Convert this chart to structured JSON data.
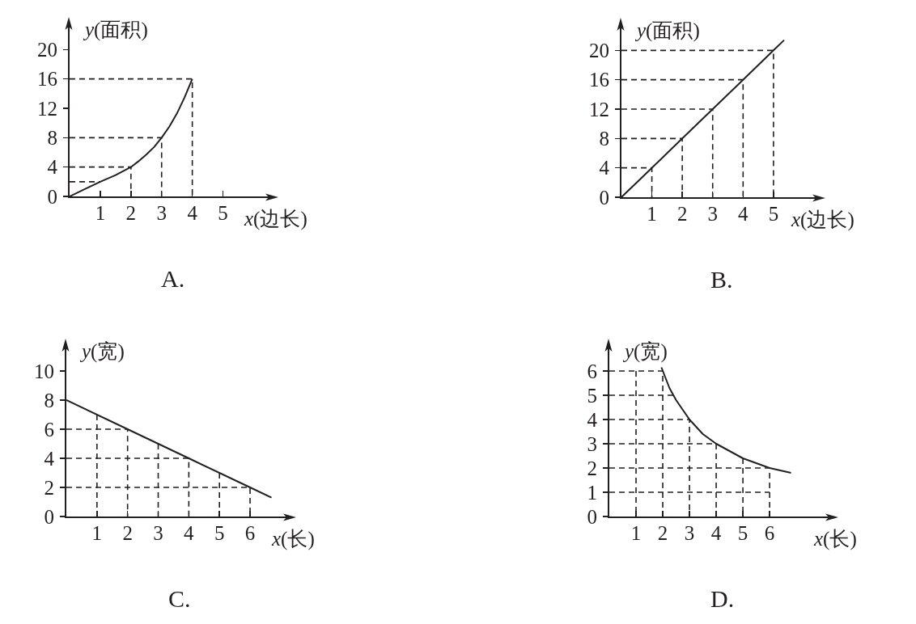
{
  "chart_data": [
    {
      "type": "line",
      "xlabel": "x(边长)",
      "ylabel": "y(面积)",
      "annotations": [
        "A."
      ],
      "xlim": [
        0,
        6.7
      ],
      "ylim": [
        0,
        24
      ],
      "xticks": [
        1,
        2,
        3,
        4,
        5
      ],
      "yticks": [
        0,
        4,
        8,
        12,
        16,
        20
      ],
      "series": [
        {
          "color": "#231f20",
          "line_style": "solid",
          "x": [
            0,
            0.5,
            1,
            1.5,
            2,
            2.25,
            2.5,
            2.75,
            3,
            3.25,
            3.5,
            3.75,
            4
          ],
          "values": [
            0,
            1,
            2,
            2.9,
            4,
            4.8,
            5.7,
            6.7,
            8,
            9.5,
            11.3,
            13.5,
            16
          ]
        },
        {
          "color": "#231f20",
          "line_style": "dashed",
          "x": [
            0,
            1
          ],
          "values": [
            2,
            2
          ]
        },
        {
          "color": "#231f20",
          "line_style": "dashed",
          "x": [
            0,
            2,
            2
          ],
          "values": [
            4,
            4,
            0
          ]
        },
        {
          "color": "#231f20",
          "line_style": "dashed",
          "x": [
            0,
            3,
            3
          ],
          "values": [
            8,
            8,
            0
          ]
        },
        {
          "color": "#231f20",
          "line_style": "dashed",
          "x": [
            0,
            4,
            4
          ],
          "values": [
            16,
            16,
            0
          ]
        }
      ]
    },
    {
      "type": "line",
      "xlabel": "x(边长)",
      "ylabel": "y(面积)",
      "annotations": [
        "B."
      ],
      "xlim": [
        0,
        6.6
      ],
      "ylim": [
        0,
        24
      ],
      "xticks": [
        1,
        2,
        3,
        4,
        5
      ],
      "yticks": [
        0,
        4,
        8,
        12,
        16,
        20
      ],
      "series": [
        {
          "color": "#231f20",
          "line_style": "solid",
          "x": [
            0,
            1,
            2,
            3,
            4,
            5,
            5.35
          ],
          "values": [
            0,
            4,
            8,
            12,
            16,
            20,
            21.4
          ]
        },
        {
          "color": "#231f20",
          "line_style": "dashed",
          "x": [
            0,
            1,
            1
          ],
          "values": [
            4,
            4,
            0
          ]
        },
        {
          "color": "#231f20",
          "line_style": "dashed",
          "x": [
            0,
            2,
            2
          ],
          "values": [
            8,
            8,
            0
          ]
        },
        {
          "color": "#231f20",
          "line_style": "dashed",
          "x": [
            0,
            3,
            3
          ],
          "values": [
            12,
            12,
            0
          ]
        },
        {
          "color": "#231f20",
          "line_style": "dashed",
          "x": [
            0,
            4,
            4
          ],
          "values": [
            16,
            16,
            0
          ]
        },
        {
          "color": "#231f20",
          "line_style": "dashed",
          "x": [
            0,
            5,
            5
          ],
          "values": [
            20,
            20,
            0
          ]
        }
      ]
    },
    {
      "type": "line",
      "xlabel": "x(长)",
      "ylabel": "y(宽)",
      "annotations": [
        "C."
      ],
      "xlim": [
        0,
        7.4
      ],
      "ylim": [
        0,
        12
      ],
      "xticks": [
        1,
        2,
        3,
        4,
        5,
        6
      ],
      "yticks": [
        0,
        2,
        4,
        6,
        8,
        10
      ],
      "series": [
        {
          "color": "#231f20",
          "line_style": "solid",
          "x": [
            0,
            2,
            4,
            6,
            6.7
          ],
          "values": [
            8,
            6,
            4,
            2,
            1.3
          ]
        },
        {
          "color": "#231f20",
          "line_style": "dashed",
          "x": [
            0,
            2,
            2
          ],
          "values": [
            6,
            6,
            0
          ]
        },
        {
          "color": "#231f20",
          "line_style": "dashed",
          "x": [
            0,
            4,
            4
          ],
          "values": [
            4,
            4,
            0
          ]
        },
        {
          "color": "#231f20",
          "line_style": "dashed",
          "x": [
            0,
            6,
            6
          ],
          "values": [
            2,
            2,
            0
          ]
        },
        {
          "color": "#231f20",
          "line_style": "dashed",
          "x": [
            1,
            1
          ],
          "values": [
            7,
            0
          ]
        },
        {
          "color": "#231f20",
          "line_style": "dashed",
          "x": [
            3,
            3
          ],
          "values": [
            5,
            0
          ]
        },
        {
          "color": "#231f20",
          "line_style": "dashed",
          "x": [
            5,
            5
          ],
          "values": [
            3,
            0
          ]
        }
      ]
    },
    {
      "type": "line",
      "xlabel": "x(长)",
      "ylabel": "y(宽)",
      "annotations": [
        "D."
      ],
      "xlim": [
        0,
        8.45
      ],
      "ylim": [
        0,
        7.2
      ],
      "xticks": [
        1,
        2,
        3,
        4,
        5,
        6
      ],
      "yticks": [
        0,
        1,
        2,
        3,
        4,
        5,
        6
      ],
      "series": [
        {
          "color": "#231f20",
          "line_style": "solid",
          "x": [
            1.95,
            2.25,
            2.5,
            2.75,
            3,
            3.5,
            4,
            4.5,
            5,
            5.5,
            6,
            6.4,
            6.8
          ],
          "values": [
            6.15,
            5.3,
            4.8,
            4.4,
            4,
            3.4,
            3,
            2.7,
            2.4,
            2.2,
            2,
            1.9,
            1.8
          ]
        },
        {
          "color": "#231f20",
          "line_style": "dashed",
          "x": [
            0,
            2,
            2
          ],
          "values": [
            6,
            6,
            0
          ]
        },
        {
          "color": "#231f20",
          "line_style": "dashed",
          "x": [
            0,
            3,
            3
          ],
          "values": [
            4,
            4,
            0
          ]
        },
        {
          "color": "#231f20",
          "line_style": "dashed",
          "x": [
            0,
            4,
            4
          ],
          "values": [
            3,
            3,
            0
          ]
        },
        {
          "color": "#231f20",
          "line_style": "dashed",
          "x": [
            0,
            6,
            6
          ],
          "values": [
            2,
            2,
            0
          ]
        },
        {
          "color": "#231f20",
          "line_style": "dashed",
          "x": [
            0,
            2.4
          ],
          "values": [
            5,
            5
          ]
        },
        {
          "color": "#231f20",
          "line_style": "dashed",
          "x": [
            0,
            6
          ],
          "values": [
            1,
            1
          ]
        },
        {
          "color": "#231f20",
          "line_style": "dashed",
          "x": [
            1,
            1
          ],
          "values": [
            6,
            0
          ]
        },
        {
          "color": "#231f20",
          "line_style": "dashed",
          "x": [
            5,
            5
          ],
          "values": [
            2.4,
            0
          ]
        }
      ]
    }
  ]
}
